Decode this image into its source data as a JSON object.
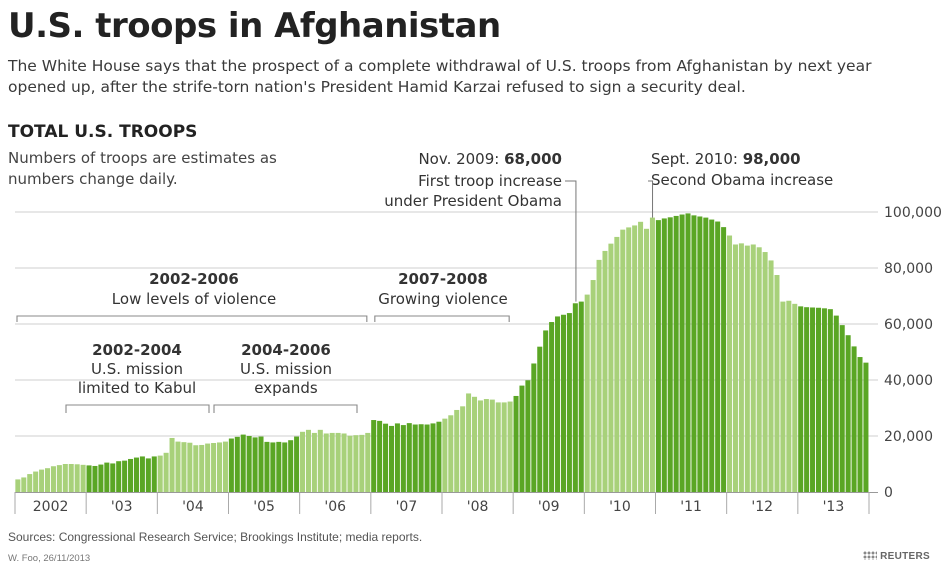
{
  "header": {
    "title": "U.S. troops in Afghanistan",
    "subtitle": "The White House says that the prospect of a complete withdrawal of U.S. troops from Afghanistan by next year opened up, after the strife-torn nation's President Hamid Karzai refused to sign a security deal.",
    "section_title": "TOTAL U.S. TROOPS",
    "note": "Numbers of troops are estimates as numbers change daily."
  },
  "footer": {
    "sources": "Sources: Congressional Research Service; Brookings Institute; media reports.",
    "credit": "W. Foo, 26/11/2013",
    "logo": "REUTERS"
  },
  "chart_data": {
    "type": "bar",
    "title": "TOTAL U.S. TROOPS",
    "ylim": [
      0,
      100000
    ],
    "y_ticks": [
      "0",
      "20,000",
      "40,000",
      "60,000",
      "80,000",
      "100,000"
    ],
    "y_tick_values": [
      0,
      20000,
      40000,
      60000,
      80000,
      100000
    ],
    "grid": true,
    "year_labels": [
      "2002",
      "'03",
      "'04",
      "'05",
      "'06",
      "'07",
      "'08",
      "'09",
      "'10",
      "'11",
      "'12",
      "'13"
    ],
    "years": [
      {
        "label": "2002",
        "values": [
          4500,
          5200,
          6400,
          7300,
          8000,
          8500,
          9200,
          9600,
          10000,
          10000,
          9900,
          9700
        ]
      },
      {
        "label": "'03",
        "values": [
          9500,
          9300,
          9800,
          10500,
          10200,
          11000,
          11200,
          11800,
          12300,
          12700,
          12000,
          12700
        ]
      },
      {
        "label": "'04",
        "values": [
          13000,
          14000,
          19300,
          18000,
          17800,
          17600,
          16700,
          16800,
          17300,
          17500,
          17700,
          18000
        ]
      },
      {
        "label": "'05",
        "values": [
          19100,
          19700,
          20500,
          20000,
          19500,
          19800,
          17900,
          17700,
          17900,
          17700,
          18500,
          19800
        ]
      },
      {
        "label": "'06",
        "values": [
          21500,
          22200,
          21100,
          22200,
          20900,
          21100,
          21100,
          20900,
          20100,
          20300,
          20400,
          21100
        ]
      },
      {
        "label": "'07",
        "values": [
          25700,
          25400,
          24400,
          23600,
          24500,
          23900,
          24600,
          24100,
          24200,
          24100,
          24500,
          25100
        ]
      },
      {
        "label": "'08",
        "values": [
          26200,
          27400,
          29300,
          30600,
          35200,
          34000,
          32700,
          33200,
          33000,
          32000,
          32000,
          32300
        ]
      },
      {
        "label": "'09",
        "values": [
          34300,
          38000,
          39900,
          45900,
          51900,
          57700,
          60700,
          62700,
          63300,
          63900,
          67400,
          68000
        ]
      },
      {
        "label": "'10",
        "values": [
          70500,
          75700,
          82900,
          86100,
          88700,
          91100,
          93700,
          94500,
          95200,
          96500,
          94000,
          98000
        ]
      },
      {
        "label": "'11",
        "values": [
          97100,
          97700,
          98100,
          98600,
          99100,
          99500,
          98800,
          98400,
          98000,
          97300,
          96600,
          94600
        ]
      },
      {
        "label": "'12",
        "values": [
          91600,
          88400,
          88800,
          88000,
          88400,
          87400,
          85700,
          82700,
          77500,
          68000,
          68300,
          67200
        ]
      },
      {
        "label": "'13",
        "values": [
          66300,
          66000,
          65900,
          65800,
          65600,
          65300,
          63000,
          59600,
          56000,
          52000,
          48200,
          46200
        ]
      }
    ],
    "annotations": [
      {
        "range": "2002-2006",
        "text": "Low levels of violence"
      },
      {
        "range": "2007-2008",
        "text": "Growing violence"
      },
      {
        "range": "2002-2004",
        "text": "U.S. mission limited to Kabul"
      },
      {
        "range": "2004-2006",
        "text": "U.S. mission expands"
      },
      {
        "date": "Nov. 2009:",
        "value_label": "68,000",
        "text": "First troop increase under President Obama"
      },
      {
        "date": "Sept. 2010:",
        "value_label": "98,000",
        "text": "Second Obama increase"
      }
    ],
    "colors": {
      "bar_light": "#a8d17a",
      "bar_dark": "#5aa624",
      "grid": "#cfcfcf",
      "bracket": "#888888"
    }
  }
}
